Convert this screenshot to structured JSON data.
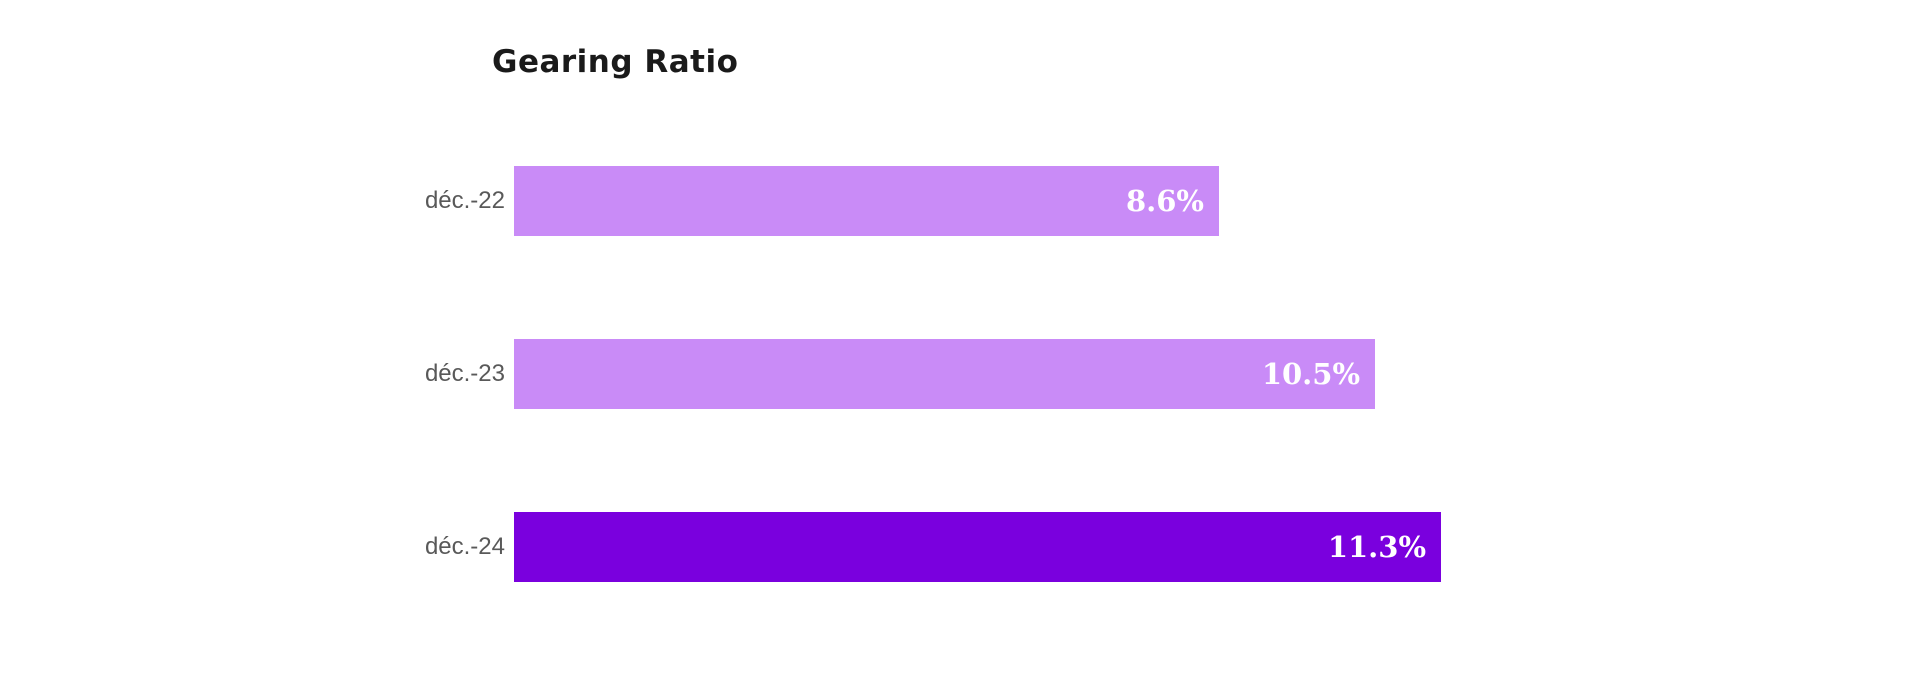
{
  "chart_data": {
    "type": "bar",
    "orientation": "horizontal",
    "title": "Gearing Ratio",
    "categories": [
      "déc.-22",
      "déc.-23",
      "déc.-24"
    ],
    "values": [
      8.6,
      10.5,
      11.3
    ],
    "value_labels": [
      "8.6%",
      "10.5%",
      "11.3%"
    ],
    "series": [
      {
        "name": "Gearing Ratio",
        "values": [
          8.6,
          10.5,
          11.3
        ]
      }
    ],
    "xlabel": "",
    "ylabel": "",
    "axis_min": 0,
    "grid": false,
    "axes_visible": false,
    "legend": false,
    "value_label_position": "inside-end",
    "bar_colors": [
      "#c98bf7",
      "#c98bf7",
      "#7a00de"
    ],
    "colors": {
      "title_text": "#1a1a1a",
      "category_label_text": "#595959",
      "value_label_text": "#ffffff",
      "background": "#ffffff"
    }
  }
}
